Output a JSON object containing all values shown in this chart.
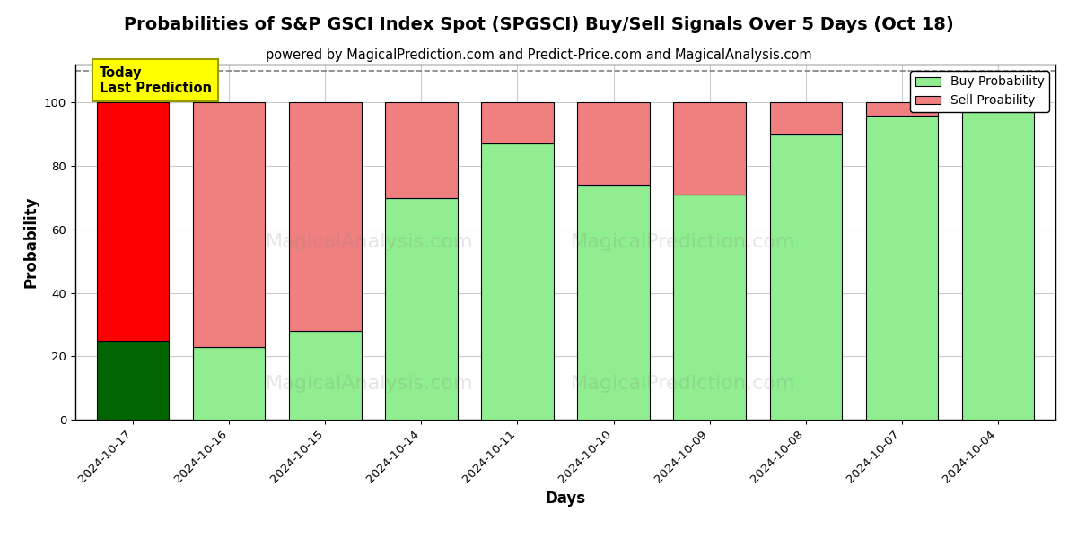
{
  "title": "Probabilities of S&P GSCI Index Spot (SPGSCI) Buy/Sell Signals Over 5 Days (Oct 18)",
  "subtitle": "powered by MagicalPrediction.com and Predict-Price.com and MagicalAnalysis.com",
  "xlabel": "Days",
  "ylabel": "Probability",
  "dates": [
    "2024-10-17",
    "2024-10-16",
    "2024-10-15",
    "2024-10-14",
    "2024-10-11",
    "2024-10-10",
    "2024-10-09",
    "2024-10-08",
    "2024-10-07",
    "2024-10-04"
  ],
  "buy_values": [
    25,
    23,
    28,
    70,
    87,
    74,
    71,
    90,
    96,
    100
  ],
  "sell_values": [
    75,
    77,
    72,
    30,
    13,
    26,
    29,
    10,
    4,
    0
  ],
  "buy_color_first": "#006400",
  "buy_color_rest": "#90EE90",
  "sell_color_first": "#FF0000",
  "sell_color_rest": "#F08080",
  "ylim": [
    0,
    112
  ],
  "dashed_line_y": 110,
  "today_box_color": "#FFFF00",
  "today_text": "Today\nLast Prediction",
  "legend_buy_label": "Buy Probability",
  "legend_sell_label": "Sell Proability",
  "bg_color": "#ffffff",
  "grid_color": "#cccccc",
  "title_fontsize": 14,
  "subtitle_fontsize": 10.5,
  "axis_label_fontsize": 12,
  "tick_fontsize": 9.5,
  "bar_width": 0.75
}
